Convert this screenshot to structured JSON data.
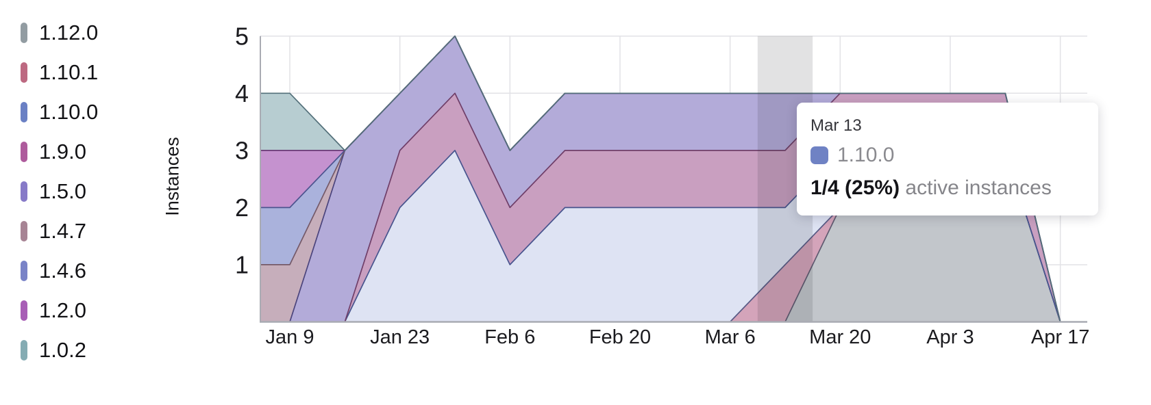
{
  "chart_data": {
    "type": "area",
    "stacked": true,
    "ylabel": "Instances",
    "ylim": [
      0,
      5
    ],
    "yticks": [
      1,
      2,
      3,
      4,
      5
    ],
    "grid": true,
    "legend_position": "left",
    "x_tick_labels": [
      "Jan 9",
      "Jan 23",
      "Feb 6",
      "Feb 20",
      "Mar 6",
      "Mar 20",
      "Apr 3",
      "Apr 17"
    ],
    "x_points": [
      "Jan 2",
      "Jan 9",
      "Jan 16",
      "Jan 23",
      "Jan 30",
      "Feb 6",
      "Feb 13",
      "Feb 20",
      "Feb 27",
      "Mar 6",
      "Mar 13",
      "Mar 20",
      "Mar 27",
      "Apr 3",
      "Apr 10",
      "Apr 17"
    ],
    "series": [
      {
        "label": "1.12.0",
        "color": "#929ca2",
        "fill": "#c2c6cb",
        "stroke": "#5f5a70",
        "values": [
          0,
          0,
          0,
          0,
          0,
          0,
          0,
          0,
          0,
          0,
          0,
          2,
          3,
          3,
          3,
          0
        ]
      },
      {
        "label": "1.10.1",
        "color": "#bd6981",
        "fill": "#d4a4ba",
        "stroke": "#585a85",
        "values": [
          0,
          0,
          0,
          0,
          0,
          0,
          0,
          0,
          0,
          0,
          1,
          0,
          0,
          0,
          0,
          0
        ]
      },
      {
        "label": "1.10.0",
        "color": "#6a80c4",
        "fill": "#dee3f3",
        "stroke": "#47548e",
        "values": [
          0,
          0,
          0,
          2,
          3,
          1,
          2,
          2,
          2,
          2,
          1,
          1,
          0,
          0,
          0,
          0
        ]
      },
      {
        "label": "1.9.0",
        "color": "#ae5b9c",
        "fill": "#c99fc0",
        "stroke": "#6f3e68",
        "values": [
          0,
          0,
          0,
          1,
          1,
          1,
          1,
          1,
          1,
          1,
          1,
          1,
          1,
          1,
          1,
          0
        ]
      },
      {
        "label": "1.5.0",
        "color": "#877ac8",
        "fill": "#b3abd9",
        "stroke": "#4b447c",
        "values": [
          0,
          0,
          3,
          1,
          1,
          1,
          1,
          1,
          1,
          1,
          1,
          0,
          0,
          0,
          0,
          0
        ]
      },
      {
        "label": "1.4.7",
        "color": "#a78494",
        "fill": "#c6aebb",
        "stroke": "#745968",
        "values": [
          1,
          1,
          0,
          0,
          0,
          0,
          0,
          0,
          0,
          0,
          0,
          0,
          0,
          0,
          0,
          0
        ]
      },
      {
        "label": "1.4.6",
        "color": "#7983c7",
        "fill": "#aab2dc",
        "stroke": "#4c548f",
        "values": [
          1,
          1,
          0,
          0,
          0,
          0,
          0,
          0,
          0,
          0,
          0,
          0,
          0,
          0,
          0,
          0
        ]
      },
      {
        "label": "1.2.0",
        "color": "#a85eb6",
        "fill": "#c592cf",
        "stroke": "#693a76",
        "values": [
          1,
          1,
          0,
          0,
          0,
          0,
          0,
          0,
          0,
          0,
          0,
          0,
          0,
          0,
          0,
          0
        ]
      },
      {
        "label": "1.0.2",
        "color": "#85acb3",
        "fill": "#b7cdd1",
        "stroke": "#53707a",
        "values": [
          1,
          1,
          0,
          0,
          0,
          0,
          0,
          0,
          0,
          0,
          0,
          0,
          0,
          0,
          0,
          0
        ]
      }
    ],
    "highlight": {
      "x_point": "Mar 13",
      "week_index": 10
    }
  },
  "tooltip": {
    "date": "Mar 13",
    "series": "1.10.0",
    "swatch_color": "#6f82c4",
    "value_text": "1/4 (25%)",
    "value_suffix": "active instances"
  },
  "colors": {
    "grid_line": "#e2e2e6",
    "axis_line": "#a9abb3",
    "tick_label": "#1b1b1f",
    "highlight_band": "rgba(50,50,55,0.14)"
  }
}
